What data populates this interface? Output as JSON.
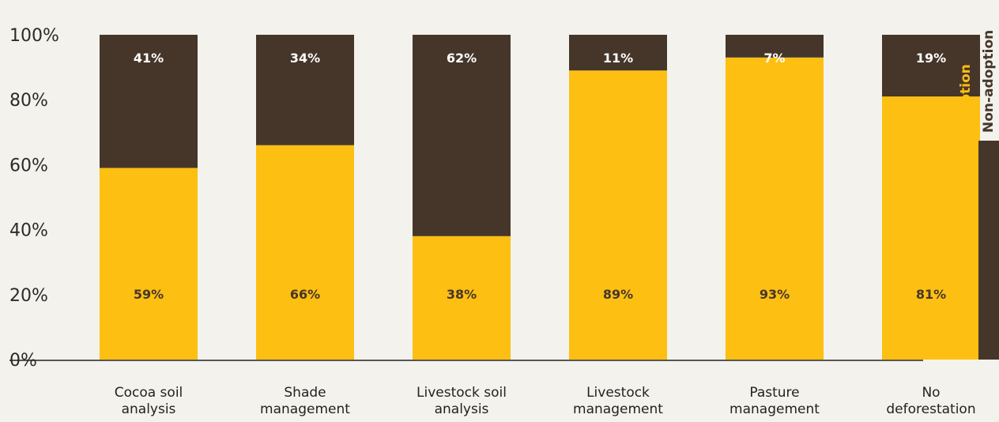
{
  "chart_data": {
    "type": "bar",
    "stacked": true,
    "categories": [
      [
        "Cocoa soil",
        "analysis"
      ],
      [
        "Shade",
        "management"
      ],
      [
        "Livestock soil",
        "analysis"
      ],
      [
        "Livestock",
        "management"
      ],
      [
        "Pasture",
        "management"
      ],
      [
        "No",
        "deforestation"
      ]
    ],
    "series": [
      {
        "name": "Adoption",
        "values": [
          59,
          66,
          38,
          89,
          93,
          81
        ],
        "labels": [
          "59%",
          "66%",
          "38%",
          "89%",
          "93%",
          "81%"
        ]
      },
      {
        "name": "Non-adoption",
        "values": [
          41,
          34,
          62,
          11,
          7,
          19
        ],
        "labels": [
          "41%",
          "34%",
          "62%",
          "11%",
          "7%",
          "19%"
        ]
      }
    ],
    "y_ticks": [
      "0%",
      "20%",
      "40%",
      "60%",
      "80%",
      "100%"
    ],
    "ylim": [
      0,
      100
    ],
    "grid": false,
    "legend_position": "right",
    "colors": {
      "adoption": "#fdbf11",
      "non_adoption": "#46362a",
      "axis": "#222222",
      "background": "#f3f2ec",
      "label_on_adoption": "#46362a",
      "label_on_non_adoption": "#ffffff"
    }
  }
}
